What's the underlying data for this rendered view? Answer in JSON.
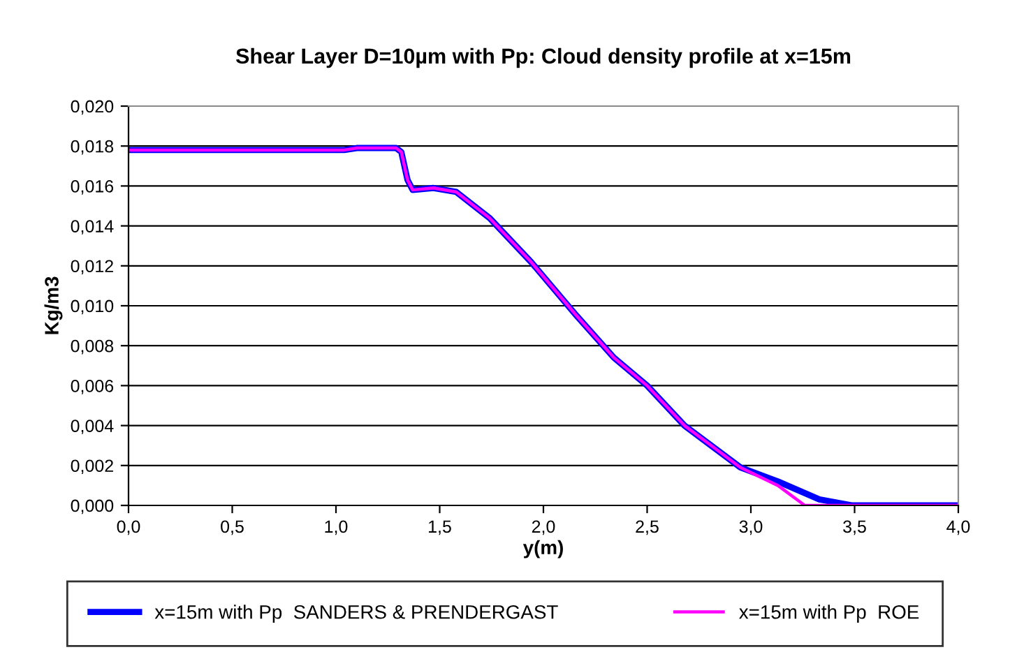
{
  "chart_data": {
    "type": "line",
    "title": "Shear Layer D=10µm with Pp: Cloud density profile at x=15m",
    "xlabel": "y(m)",
    "ylabel": "Kg/m3",
    "xlim": [
      0,
      4
    ],
    "xticks": [
      {
        "value": 0,
        "label": "0,0"
      },
      {
        "value": 0.5,
        "label": "0,5"
      },
      {
        "value": 1,
        "label": "1,0"
      },
      {
        "value": 1.5,
        "label": "1,5"
      },
      {
        "value": 2,
        "label": "2,0"
      },
      {
        "value": 2.5,
        "label": "2,5"
      },
      {
        "value": 3,
        "label": "3,0"
      },
      {
        "value": 3.5,
        "label": "3,5"
      },
      {
        "value": 4,
        "label": "4,0"
      }
    ],
    "ylim": [
      0,
      0.02
    ],
    "yticks": [
      {
        "value": 0,
        "label": "0,000"
      },
      {
        "value": 0.002,
        "label": "0,002"
      },
      {
        "value": 0.004,
        "label": "0,004"
      },
      {
        "value": 0.006,
        "label": "0,006"
      },
      {
        "value": 0.008,
        "label": "0,008"
      },
      {
        "value": 0.01,
        "label": "0,010"
      },
      {
        "value": 0.012,
        "label": "0,012"
      },
      {
        "value": 0.014,
        "label": "0,014"
      },
      {
        "value": 0.016,
        "label": "0,016"
      },
      {
        "value": 0.018,
        "label": "0,018"
      },
      {
        "value": 0.02,
        "label": "0,020"
      }
    ],
    "grid": "y",
    "legend": "bottom",
    "marker": "none",
    "line_style": "solid",
    "series": [
      {
        "name": "x=15m with Pp  SANDERS & PRENDERGAST",
        "color": "#0000ff",
        "x": [
          0,
          1.04,
          1.1,
          1.29,
          1.315,
          1.345,
          1.37,
          1.47,
          1.58,
          1.74,
          1.94,
          2.16,
          2.34,
          2.5,
          2.68,
          2.95,
          3.13,
          3.33,
          3.49,
          4.0
        ],
        "values": [
          0.0178,
          0.0178,
          0.0179,
          0.0179,
          0.0177,
          0.0163,
          0.0158,
          0.0159,
          0.0157,
          0.0144,
          0.0122,
          0.0095,
          0.0074,
          0.006,
          0.004,
          0.0019,
          0.0012,
          0.0003,
          0,
          0
        ]
      },
      {
        "name": "x=15m with Pp  ROE",
        "color": "#ff00ff",
        "x": [
          0,
          1.04,
          1.1,
          1.29,
          1.315,
          1.345,
          1.37,
          1.47,
          1.58,
          1.74,
          1.94,
          2.16,
          2.34,
          2.5,
          2.68,
          2.95,
          3.13,
          3.26,
          4.0
        ],
        "values": [
          0.0178,
          0.0178,
          0.0179,
          0.0179,
          0.0177,
          0.0163,
          0.0158,
          0.0159,
          0.0157,
          0.0144,
          0.0122,
          0.0095,
          0.0074,
          0.006,
          0.004,
          0.0019,
          0.001,
          0,
          0
        ]
      }
    ]
  }
}
